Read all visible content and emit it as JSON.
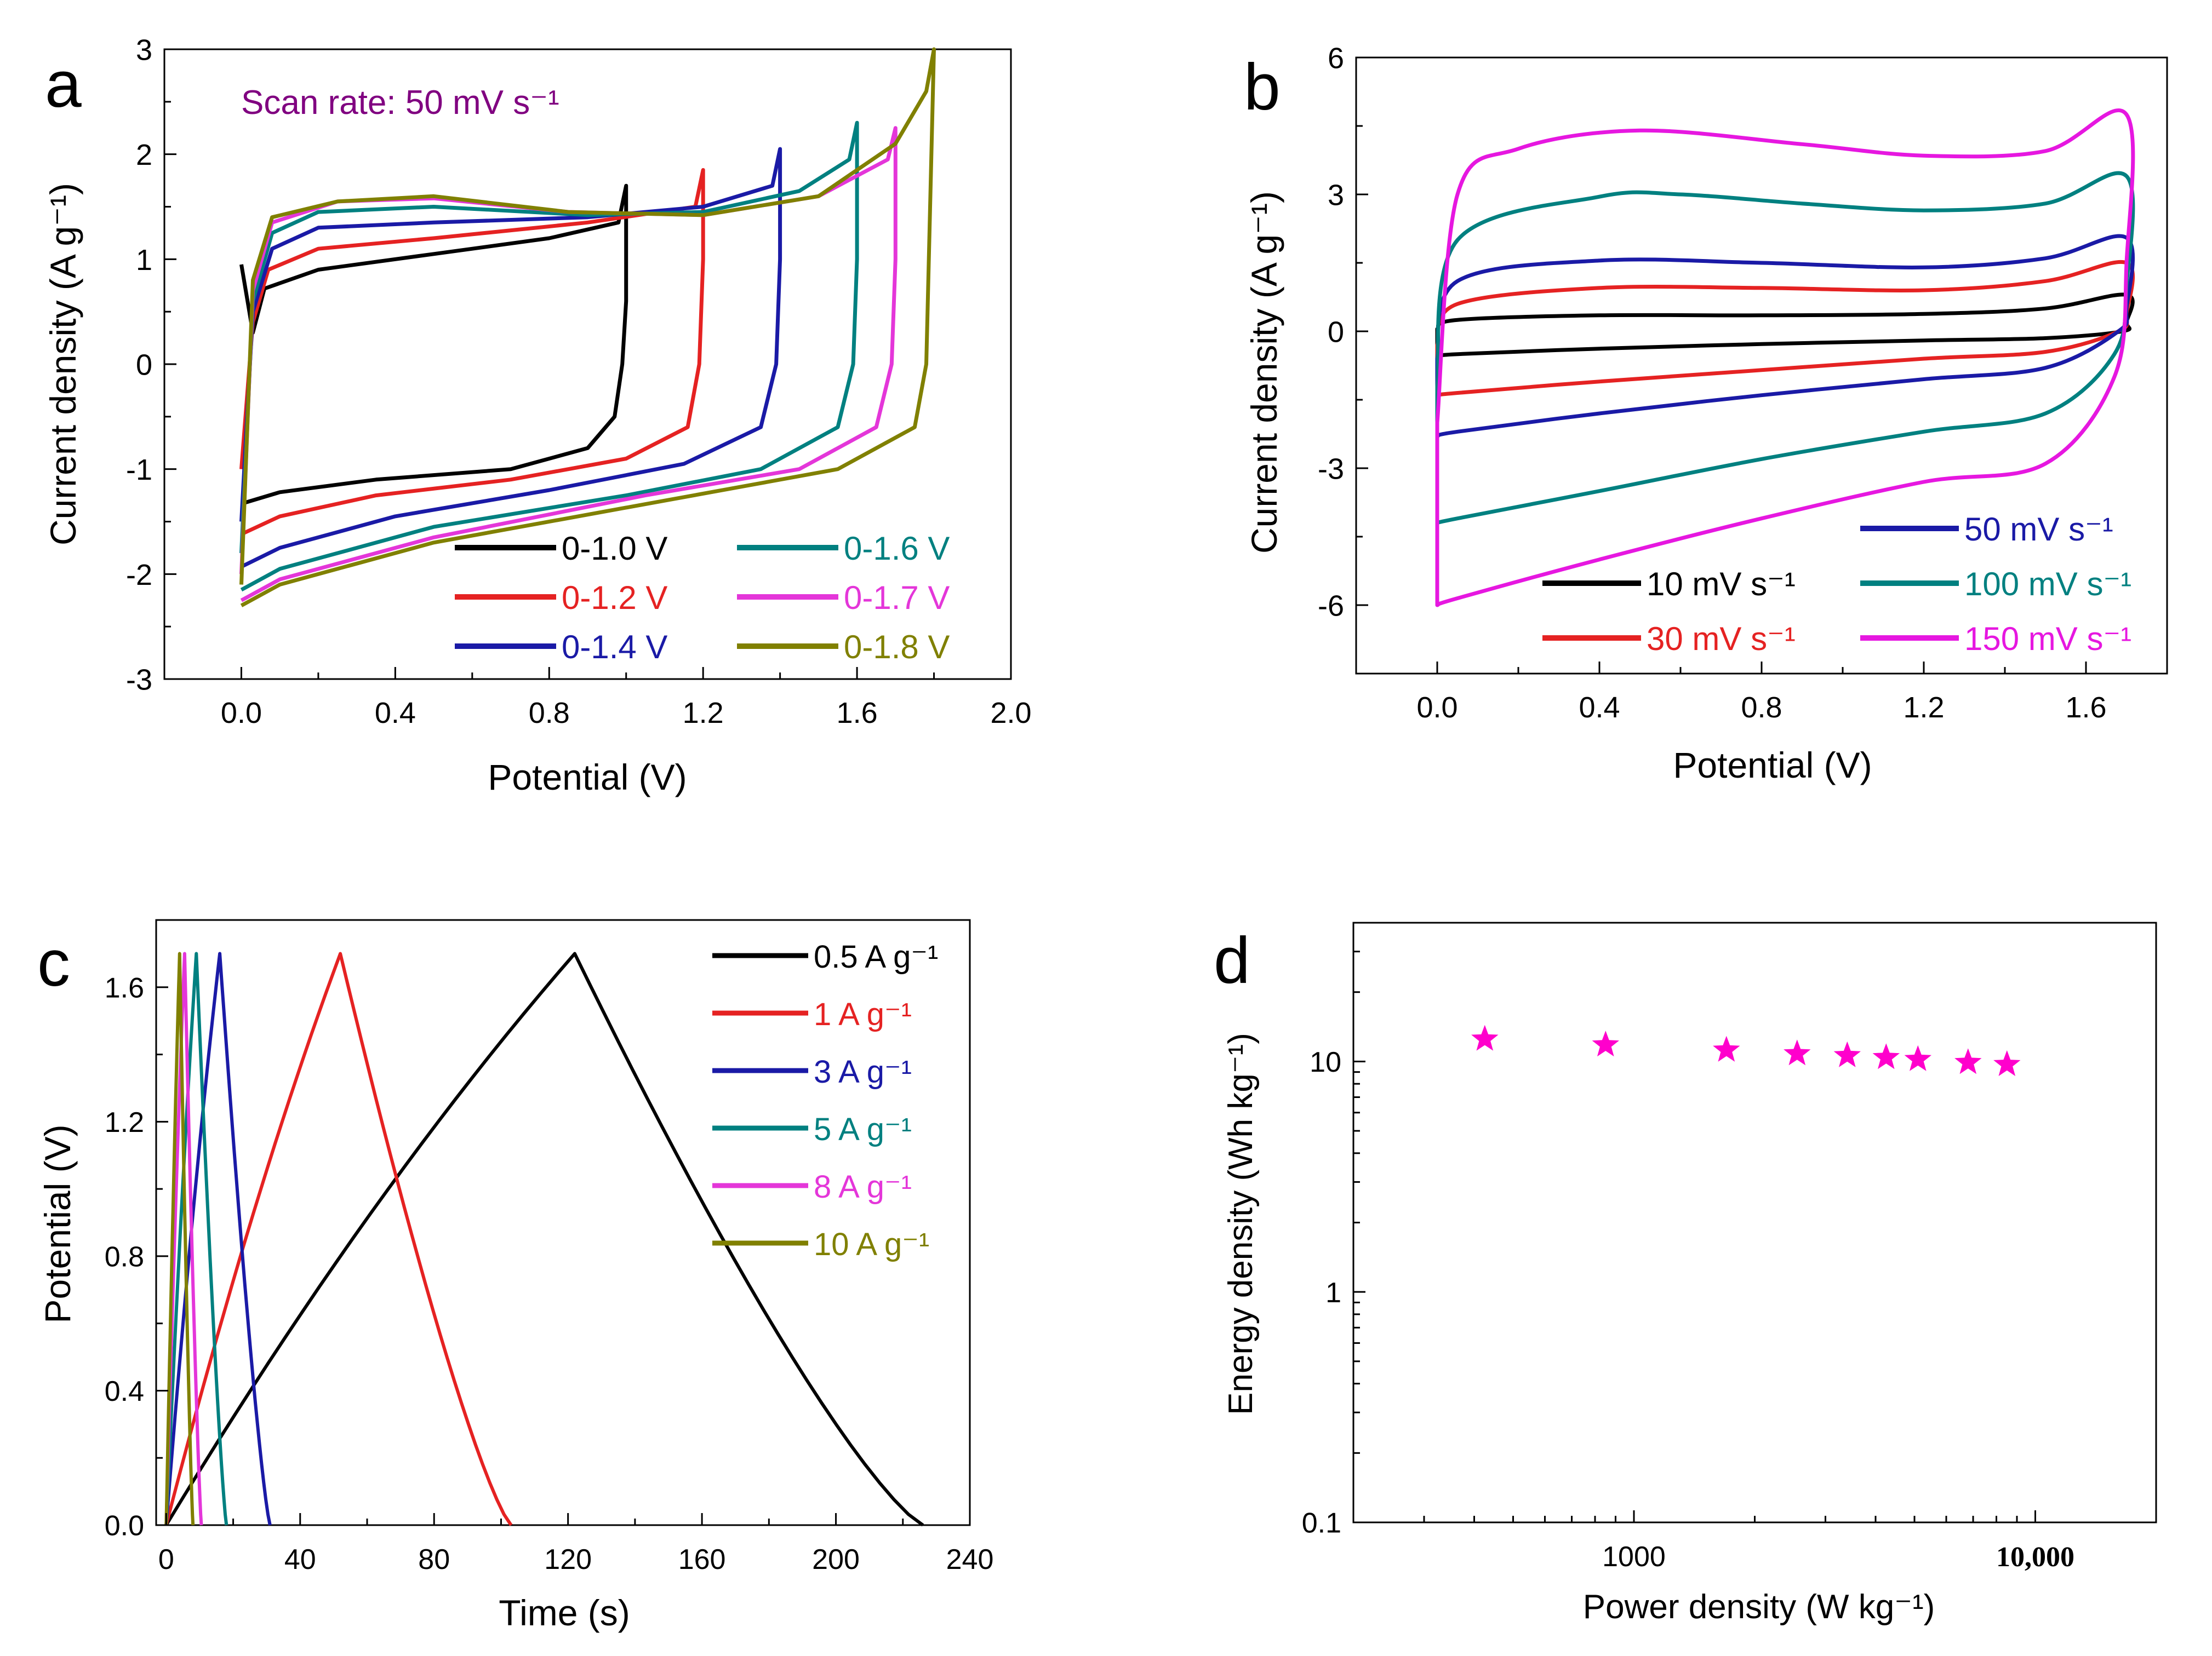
{
  "chart_data": [
    {
      "panel": "a",
      "type": "line",
      "title": "",
      "annotation": "Scan rate: 50 mV s⁻¹",
      "annotation_color": "#800080",
      "xlabel": "Potential (V)",
      "ylabel": "Current density (A g⁻¹)",
      "xlim": [
        -0.2,
        2.0
      ],
      "ylim": [
        -3,
        3
      ],
      "xticks": [
        0.0,
        0.4,
        0.8,
        1.2,
        1.6,
        2.0
      ],
      "xtick_labels": [
        "0.0",
        "0.4",
        "0.8",
        "1.2",
        "1.6",
        "2.0"
      ],
      "yticks": [
        -3,
        -2,
        -1,
        0,
        1,
        2,
        3
      ],
      "ytick_labels": [
        "-3",
        "-2",
        "-1",
        "0",
        "1",
        "2",
        "3"
      ],
      "legend_position": "bottom-right",
      "legend_columns": 2,
      "series": [
        {
          "name": "0-1.0 V",
          "color": "#000000",
          "vmax": 1.0,
          "ipeak": 1.7,
          "up": [
            [
              0,
              0.95
            ],
            [
              0.03,
              0.3
            ],
            [
              0.06,
              0.72
            ],
            [
              0.2,
              0.9
            ],
            [
              0.5,
              1.05
            ],
            [
              0.8,
              1.2
            ],
            [
              0.98,
              1.35
            ],
            [
              1.0,
              1.7
            ]
          ],
          "down": [
            [
              1.0,
              1.7
            ],
            [
              1.0,
              0.6
            ],
            [
              0.99,
              0.0
            ],
            [
              0.97,
              -0.5
            ],
            [
              0.9,
              -0.8
            ],
            [
              0.7,
              -1.0
            ],
            [
              0.35,
              -1.1
            ],
            [
              0.1,
              -1.22
            ],
            [
              0,
              -1.33
            ]
          ]
        },
        {
          "name": "0-1.2 V",
          "color": "#e52222",
          "vmax": 1.2,
          "ipeak": 1.85,
          "up": [
            [
              0,
              -1.0
            ],
            [
              0.03,
              0.4
            ],
            [
              0.07,
              0.9
            ],
            [
              0.2,
              1.1
            ],
            [
              0.5,
              1.2
            ],
            [
              0.9,
              1.35
            ],
            [
              1.18,
              1.5
            ],
            [
              1.2,
              1.85
            ]
          ],
          "down": [
            [
              1.2,
              1.85
            ],
            [
              1.2,
              1.0
            ],
            [
              1.19,
              0.0
            ],
            [
              1.16,
              -0.6
            ],
            [
              1.0,
              -0.9
            ],
            [
              0.7,
              -1.1
            ],
            [
              0.35,
              -1.25
            ],
            [
              0.1,
              -1.45
            ],
            [
              0,
              -1.62
            ]
          ]
        },
        {
          "name": "0-1.4 V",
          "color": "#1a1aa6",
          "vmax": 1.4,
          "ipeak": 2.05,
          "up": [
            [
              0,
              -1.5
            ],
            [
              0.03,
              0.5
            ],
            [
              0.08,
              1.1
            ],
            [
              0.2,
              1.3
            ],
            [
              0.5,
              1.35
            ],
            [
              0.9,
              1.4
            ],
            [
              1.2,
              1.5
            ],
            [
              1.38,
              1.7
            ],
            [
              1.4,
              2.05
            ]
          ],
          "down": [
            [
              1.4,
              2.05
            ],
            [
              1.4,
              1.0
            ],
            [
              1.39,
              0.0
            ],
            [
              1.35,
              -0.6
            ],
            [
              1.15,
              -0.95
            ],
            [
              0.8,
              -1.2
            ],
            [
              0.4,
              -1.45
            ],
            [
              0.1,
              -1.75
            ],
            [
              0,
              -1.93
            ]
          ]
        },
        {
          "name": "0-1.6 V",
          "color": "#008080",
          "vmax": 1.6,
          "ipeak": 2.3,
          "up": [
            [
              0,
              -1.8
            ],
            [
              0.03,
              0.6
            ],
            [
              0.08,
              1.25
            ],
            [
              0.2,
              1.45
            ],
            [
              0.5,
              1.5
            ],
            [
              0.9,
              1.42
            ],
            [
              1.2,
              1.45
            ],
            [
              1.45,
              1.65
            ],
            [
              1.58,
              1.95
            ],
            [
              1.6,
              2.3
            ]
          ],
          "down": [
            [
              1.6,
              2.3
            ],
            [
              1.6,
              1.0
            ],
            [
              1.59,
              0.0
            ],
            [
              1.55,
              -0.6
            ],
            [
              1.35,
              -1.0
            ],
            [
              1.0,
              -1.25
            ],
            [
              0.5,
              -1.55
            ],
            [
              0.1,
              -1.95
            ],
            [
              0,
              -2.15
            ]
          ]
        },
        {
          "name": "0-1.7 V",
          "color": "#e436d9",
          "vmax": 1.7,
          "ipeak": 2.25,
          "up": [
            [
              0,
              -2.0
            ],
            [
              0.03,
              0.7
            ],
            [
              0.08,
              1.35
            ],
            [
              0.25,
              1.55
            ],
            [
              0.5,
              1.58
            ],
            [
              0.85,
              1.45
            ],
            [
              1.2,
              1.42
            ],
            [
              1.5,
              1.6
            ],
            [
              1.68,
              1.95
            ],
            [
              1.7,
              2.25
            ]
          ],
          "down": [
            [
              1.7,
              2.25
            ],
            [
              1.7,
              1.0
            ],
            [
              1.69,
              0.0
            ],
            [
              1.65,
              -0.6
            ],
            [
              1.45,
              -1.0
            ],
            [
              1.05,
              -1.25
            ],
            [
              0.5,
              -1.65
            ],
            [
              0.1,
              -2.05
            ],
            [
              0,
              -2.25
            ]
          ]
        },
        {
          "name": "0-1.8 V",
          "color": "#808000",
          "vmax": 1.8,
          "ipeak": 3.0,
          "up": [
            [
              0,
              -2.1
            ],
            [
              0.03,
              0.8
            ],
            [
              0.08,
              1.4
            ],
            [
              0.25,
              1.55
            ],
            [
              0.5,
              1.6
            ],
            [
              0.85,
              1.45
            ],
            [
              1.2,
              1.42
            ],
            [
              1.5,
              1.6
            ],
            [
              1.7,
              2.1
            ],
            [
              1.78,
              2.6
            ],
            [
              1.8,
              3.0
            ]
          ],
          "down": [
            [
              1.8,
              3.0
            ],
            [
              1.79,
              1.5
            ],
            [
              1.78,
              0.0
            ],
            [
              1.75,
              -0.6
            ],
            [
              1.55,
              -1.0
            ],
            [
              1.1,
              -1.3
            ],
            [
              0.5,
              -1.7
            ],
            [
              0.1,
              -2.1
            ],
            [
              0,
              -2.3
            ]
          ]
        }
      ]
    },
    {
      "panel": "b",
      "type": "line",
      "title": "",
      "xlabel": "Potential (V)",
      "ylabel": "Current density (A g⁻¹)",
      "xlim": [
        -0.2,
        1.8
      ],
      "ylim": [
        -7.5,
        6
      ],
      "xticks": [
        0.0,
        0.4,
        0.8,
        1.2,
        1.6
      ],
      "xtick_labels": [
        "0.0",
        "0.4",
        "0.8",
        "1.2",
        "1.6"
      ],
      "yticks": [
        -6,
        -3,
        0,
        3,
        6
      ],
      "ytick_labels": [
        "-6",
        "-3",
        "0",
        "3",
        "6"
      ],
      "legend_position": "bottom-right",
      "legend_columns": 2,
      "series": [
        {
          "name": "10 mV s⁻¹",
          "color": "#000000",
          "upper": [
            [
              0,
              0.05
            ],
            [
              0.05,
              0.25
            ],
            [
              0.4,
              0.35
            ],
            [
              0.8,
              0.35
            ],
            [
              1.2,
              0.38
            ],
            [
              1.5,
              0.5
            ],
            [
              1.7,
              0.8
            ]
          ],
          "lower": [
            [
              1.7,
              0.8
            ],
            [
              1.7,
              0.2
            ],
            [
              1.69,
              0.0
            ],
            [
              1.5,
              -0.15
            ],
            [
              1.2,
              -0.2
            ],
            [
              0.8,
              -0.28
            ],
            [
              0.4,
              -0.38
            ],
            [
              0.05,
              -0.5
            ],
            [
              0,
              -0.55
            ]
          ]
        },
        {
          "name": "30 mV s⁻¹",
          "color": "#e52222",
          "upper": [
            [
              0,
              -0.3
            ],
            [
              0.05,
              0.6
            ],
            [
              0.4,
              0.95
            ],
            [
              0.8,
              0.95
            ],
            [
              1.2,
              0.9
            ],
            [
              1.5,
              1.1
            ],
            [
              1.7,
              1.5
            ]
          ],
          "lower": [
            [
              1.7,
              1.5
            ],
            [
              1.7,
              0.4
            ],
            [
              1.68,
              0.0
            ],
            [
              1.5,
              -0.45
            ],
            [
              1.2,
              -0.6
            ],
            [
              0.8,
              -0.85
            ],
            [
              0.4,
              -1.1
            ],
            [
              0.05,
              -1.35
            ],
            [
              0,
              -1.4
            ]
          ]
        },
        {
          "name": "50 mV s⁻¹",
          "color": "#1a1aa6",
          "upper": [
            [
              0,
              -0.6
            ],
            [
              0.05,
              1.1
            ],
            [
              0.4,
              1.55
            ],
            [
              0.8,
              1.5
            ],
            [
              1.2,
              1.4
            ],
            [
              1.5,
              1.6
            ],
            [
              1.7,
              2.05
            ]
          ],
          "lower": [
            [
              1.7,
              2.05
            ],
            [
              1.7,
              0.5
            ],
            [
              1.68,
              0.0
            ],
            [
              1.5,
              -0.8
            ],
            [
              1.2,
              -1.05
            ],
            [
              0.8,
              -1.4
            ],
            [
              0.4,
              -1.8
            ],
            [
              0.05,
              -2.2
            ],
            [
              0,
              -2.3
            ]
          ]
        },
        {
          "name": "100 mV s⁻¹",
          "color": "#008080",
          "upper": [
            [
              0,
              -1.2
            ],
            [
              0.05,
              2.0
            ],
            [
              0.4,
              2.95
            ],
            [
              0.6,
              3.0
            ],
            [
              0.9,
              2.8
            ],
            [
              1.2,
              2.65
            ],
            [
              1.5,
              2.8
            ],
            [
              1.7,
              3.4
            ]
          ],
          "lower": [
            [
              1.7,
              3.4
            ],
            [
              1.7,
              1.0
            ],
            [
              1.67,
              -0.5
            ],
            [
              1.5,
              -1.8
            ],
            [
              1.2,
              -2.2
            ],
            [
              0.8,
              -2.8
            ],
            [
              0.4,
              -3.5
            ],
            [
              0.05,
              -4.1
            ],
            [
              0,
              -4.2
            ]
          ]
        },
        {
          "name": "150 mV s⁻¹",
          "color": "#e617e0",
          "upper": [
            [
              0,
              -2.0
            ],
            [
              0.05,
              3.0
            ],
            [
              0.2,
              4.0
            ],
            [
              0.5,
              4.4
            ],
            [
              0.9,
              4.1
            ],
            [
              1.2,
              3.85
            ],
            [
              1.5,
              3.95
            ],
            [
              1.7,
              4.75
            ]
          ],
          "lower": [
            [
              1.7,
              4.75
            ],
            [
              1.7,
              1.5
            ],
            [
              1.67,
              -1.0
            ],
            [
              1.5,
              -2.9
            ],
            [
              1.2,
              -3.3
            ],
            [
              0.8,
              -4.1
            ],
            [
              0.4,
              -5.0
            ],
            [
              0.05,
              -5.85
            ],
            [
              0,
              -6.0
            ]
          ]
        }
      ]
    },
    {
      "panel": "c",
      "type": "line",
      "title": "",
      "xlabel": "Time (s)",
      "ylabel": "Potential (V)",
      "xlim": [
        -3,
        240
      ],
      "ylim": [
        0,
        1.8
      ],
      "xticks": [
        0,
        40,
        80,
        120,
        160,
        200,
        240
      ],
      "xtick_labels": [
        "0",
        "40",
        "80",
        "120",
        "160",
        "200",
        "240"
      ],
      "yticks": [
        0.0,
        0.4,
        0.8,
        1.2,
        1.6
      ],
      "ytick_labels": [
        "0.0",
        "0.4",
        "0.8",
        "1.2",
        "1.6"
      ],
      "legend_position": "top-right",
      "legend_columns": 1,
      "series": [
        {
          "name": "0.5 A g⁻¹",
          "color": "#000000",
          "tc": 122,
          "td": 226
        },
        {
          "name": "1 A g⁻¹",
          "color": "#e52222",
          "tc": 52,
          "td": 103
        },
        {
          "name": "3 A g⁻¹",
          "color": "#1a1aa6",
          "tc": 16,
          "td": 31
        },
        {
          "name": "5 A g⁻¹",
          "color": "#008080",
          "tc": 9,
          "td": 18
        },
        {
          "name": "8 A g⁻¹",
          "color": "#e436d9",
          "tc": 5.5,
          "td": 10.5
        },
        {
          "name": "10 A g⁻¹",
          "color": "#808000",
          "tc": 4,
          "td": 8
        }
      ]
    },
    {
      "panel": "d",
      "type": "scatter",
      "title": "",
      "xlabel": "Power density (W kg⁻¹)",
      "ylabel": "Energy density (Wh kg⁻¹)",
      "xscale": "log",
      "yscale": "log",
      "xlim": [
        200,
        20000
      ],
      "ylim": [
        0.1,
        40
      ],
      "xticks": [
        1000,
        10000
      ],
      "xtick_labels": [
        "1000",
        "10,000"
      ],
      "yticks": [
        0.1,
        1,
        10
      ],
      "ytick_labels": [
        "0.1",
        "1",
        "10"
      ],
      "marker": "star",
      "color": "#ff00cc",
      "x": [
        425,
        850,
        1700,
        2550,
        3400,
        4250,
        5100,
        6800,
        8500
      ],
      "y": [
        12.5,
        11.8,
        11.2,
        10.8,
        10.6,
        10.4,
        10.2,
        9.9,
        9.7
      ]
    }
  ]
}
